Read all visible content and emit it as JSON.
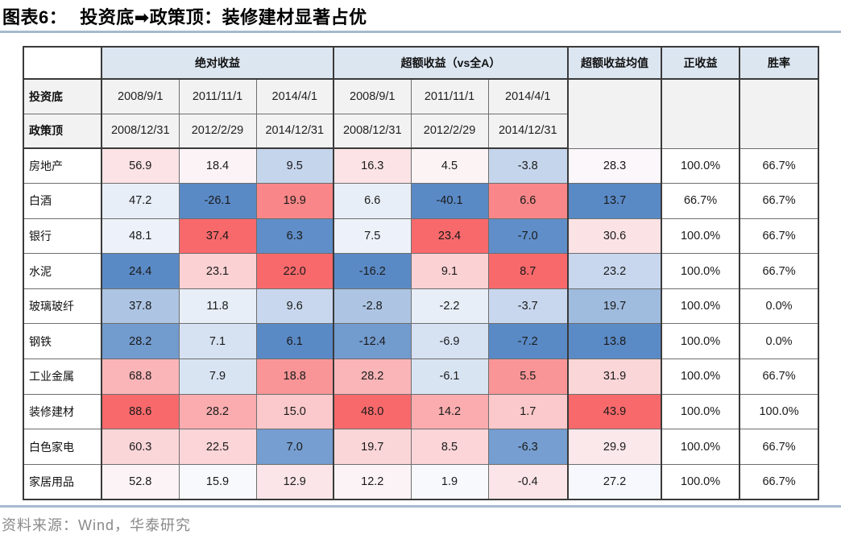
{
  "title": {
    "label": "图表6：",
    "caption": "投资底➡政策顶：装修建材显著占优"
  },
  "source": "资料来源：Wind，华泰研究",
  "colors": {
    "rule": "#a6b9ce",
    "group_header_fill": "#dce6f1",
    "subheader_fill": "#f2f2f2",
    "scale_min_blue": "#5A8AC6",
    "scale_mid_white": "#FCFCFF",
    "scale_max_red": "#F8696B"
  },
  "chart_data": {
    "type": "table",
    "title": "投资底➡政策顶：装修建材显著占优",
    "corner_label": "",
    "group_headers": [
      "绝对收益",
      "超额收益（vs全A）"
    ],
    "summary_headers": [
      "超额收益均值",
      "正收益",
      "胜率"
    ],
    "row_header_labels": [
      "投资底",
      "政策顶"
    ],
    "invest_bottom_dates": [
      "2008/9/1",
      "2011/11/1",
      "2014/4/1",
      "2008/9/1",
      "2011/11/1",
      "2014/4/1"
    ],
    "policy_top_dates": [
      "2008/12/31",
      "2012/2/29",
      "2014/12/31",
      "2008/12/31",
      "2012/2/29",
      "2014/12/31"
    ],
    "value_columns_note": "cols 1-3 absolute return, cols 4-6 excess return vs all-A, col 7 mean excess return; colored per-column blue-white-red scale with median midpoint",
    "rows": [
      {
        "label": "房地产",
        "values": [
          56.9,
          18.4,
          9.5,
          16.3,
          4.5,
          -3.8,
          28.3
        ],
        "positive": "100.0%",
        "win": "66.7%"
      },
      {
        "label": "白酒",
        "values": [
          47.2,
          -26.1,
          19.9,
          6.6,
          -40.1,
          6.6,
          13.7
        ],
        "positive": "66.7%",
        "win": "66.7%"
      },
      {
        "label": "银行",
        "values": [
          48.1,
          37.4,
          6.3,
          7.5,
          23.4,
          -7.0,
          30.6
        ],
        "positive": "100.0%",
        "win": "66.7%"
      },
      {
        "label": "水泥",
        "values": [
          24.4,
          23.1,
          22.0,
          -16.2,
          9.1,
          8.7,
          23.2
        ],
        "positive": "100.0%",
        "win": "66.7%"
      },
      {
        "label": "玻璃玻纤",
        "values": [
          37.8,
          11.8,
          9.6,
          -2.8,
          -2.2,
          -3.7,
          19.7
        ],
        "positive": "100.0%",
        "win": "0.0%"
      },
      {
        "label": "钢铁",
        "values": [
          28.2,
          7.1,
          6.1,
          -12.4,
          -6.9,
          -7.2,
          13.8
        ],
        "positive": "100.0%",
        "win": "0.0%"
      },
      {
        "label": "工业金属",
        "values": [
          68.8,
          7.9,
          18.8,
          28.2,
          -6.1,
          5.5,
          31.9
        ],
        "positive": "100.0%",
        "win": "66.7%"
      },
      {
        "label": "装修建材",
        "values": [
          88.6,
          28.2,
          15.0,
          48.0,
          14.2,
          1.7,
          43.9
        ],
        "positive": "100.0%",
        "win": "100.0%"
      },
      {
        "label": "白色家电",
        "values": [
          60.3,
          22.5,
          7.0,
          19.7,
          8.5,
          -6.3,
          29.9
        ],
        "positive": "100.0%",
        "win": "66.7%"
      },
      {
        "label": "家居用品",
        "values": [
          52.8,
          15.9,
          12.9,
          12.2,
          1.9,
          -0.4,
          27.2
        ],
        "positive": "100.0%",
        "win": "66.7%"
      }
    ]
  }
}
